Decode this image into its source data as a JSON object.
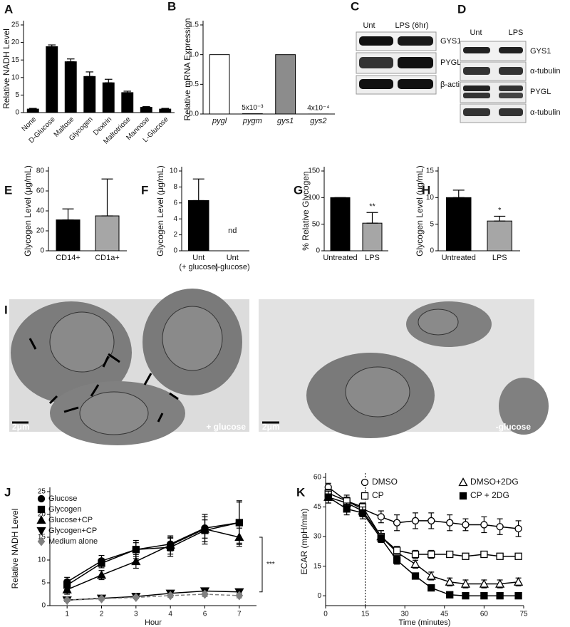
{
  "panel_labels": [
    "A",
    "B",
    "C",
    "D",
    "E",
    "F",
    "G",
    "H",
    "I",
    "J",
    "K"
  ],
  "blots": [
    {
      "header": [
        "Unt",
        "LPS (6hr)"
      ],
      "rows": [
        "GYS1",
        "PYGL",
        "β-actin"
      ]
    },
    {
      "header": [
        "Unt",
        "LPS"
      ],
      "rows": [
        "GYS1",
        "α-tubulin",
        "PYGL",
        "α-tubulin"
      ]
    }
  ],
  "micrographs": [
    {
      "scale": "2μm",
      "label": "+ glucose"
    },
    {
      "scale": "2μm",
      "label": "-glucose"
    }
  ],
  "chart_data": [
    {
      "type": "bar",
      "ylabel": "Relative NADH Level",
      "categories": [
        "None",
        "D-Glucose",
        "Maltose",
        "Glycogen",
        "Dextrin",
        "Maltotriose",
        "Mannose",
        "L-Glucose"
      ],
      "values": [
        1.0,
        18.8,
        14.5,
        10.3,
        8.5,
        5.7,
        1.5,
        1.0
      ],
      "errors": [
        0.2,
        0.5,
        0.8,
        1.3,
        1.0,
        0.4,
        0.2,
        0.2
      ],
      "color": "#000000",
      "ylim": [
        0,
        25
      ],
      "yticks": [
        0,
        5,
        10,
        15,
        20,
        25
      ]
    },
    {
      "type": "bar",
      "ylabel": "Relative mRNA Expression",
      "categories": [
        "pygl",
        "pygm",
        "gys1",
        "gys2"
      ],
      "values": [
        1.0,
        0.005,
        1.0,
        0.0004
      ],
      "value_labels": [
        null,
        "5x10⁻³",
        null,
        "4x10⁻⁴"
      ],
      "colors": [
        "#ffffff",
        "#000000",
        "#8c8c8c",
        "#000000"
      ],
      "ylim": [
        0,
        1.5
      ],
      "yticks": [
        {
          "value": 0,
          "label": "0.0"
        },
        {
          "value": 0.5,
          "label": "0.5"
        },
        {
          "value": 1,
          "label": "1.0"
        },
        {
          "value": 1.5,
          "label": "1.5"
        }
      ]
    },
    {
      "type": "bar",
      "ylabel": "Glycogen Level (μg/mL)",
      "categories": [
        "CD14+",
        "CD1a+"
      ],
      "values": [
        31,
        35
      ],
      "errors": [
        11,
        37
      ],
      "colors": [
        "#000000",
        "#a6a6a6"
      ],
      "ylim": [
        0,
        80
      ],
      "yticks": [
        0,
        20,
        40,
        60,
        80
      ]
    },
    {
      "type": "bar",
      "ylabel": "Glycogen Level (μg/mL)",
      "categories": [
        "Unt\n(+ glucose)",
        "Unt\n(-glucose)"
      ],
      "values": [
        6.3,
        null
      ],
      "errors": [
        2.7,
        null
      ],
      "annotations": [
        {
          "text": "nd",
          "category": 1
        }
      ],
      "color": "#000000",
      "ylim": [
        0,
        10
      ],
      "yticks": [
        0,
        2,
        4,
        6,
        8,
        10
      ]
    },
    {
      "type": "bar",
      "ylabel": "% Relative Glycogen",
      "categories": [
        "Untreated",
        "LPS"
      ],
      "values": [
        100,
        52
      ],
      "errors": [
        0,
        20
      ],
      "annotations": [
        {
          "text": "**",
          "category": 1
        }
      ],
      "colors": [
        "#000000",
        "#a6a6a6"
      ],
      "ylim": [
        0,
        150
      ],
      "yticks": [
        0,
        50,
        100,
        150
      ]
    },
    {
      "type": "bar",
      "ylabel": "Glycogen Level (μg/mL)",
      "categories": [
        "Untreated",
        "LPS"
      ],
      "values": [
        10,
        5.6
      ],
      "errors": [
        1.4,
        0.9
      ],
      "annotations": [
        {
          "text": "*",
          "category": 1
        }
      ],
      "colors": [
        "#000000",
        "#a6a6a6"
      ],
      "ylim": [
        0,
        15
      ],
      "yticks": [
        0,
        5,
        10,
        15
      ]
    },
    {
      "type": "line",
      "xlabel": "Hour",
      "ylabel": "Relative NADH Level",
      "categories": [
        "1",
        "2",
        "3",
        "4",
        "6",
        "7"
      ],
      "ylim": [
        0,
        25
      ],
      "yticks": [
        0,
        5,
        10,
        15,
        20,
        25
      ],
      "annotations": [
        {
          "text": "***"
        }
      ],
      "series": [
        {
          "name": "Glucose",
          "color": "#000000",
          "marker": "circle",
          "filled": true,
          "values": [
            5.2,
            9.8,
            12.3,
            13.5,
            17.0,
            18.2
          ],
          "errors": [
            1.0,
            1.2,
            1.5,
            1.5,
            3.0,
            4.5
          ]
        },
        {
          "name": "Glycogen",
          "color": "#000000",
          "marker": "square",
          "filled": true,
          "values": [
            4.5,
            9.3,
            12.3,
            12.8,
            16.5,
            18.2
          ],
          "errors": [
            1.0,
            1.0,
            2.0,
            2.0,
            3.0,
            4.8
          ]
        },
        {
          "name": "Glucose+CP",
          "color": "#000000",
          "marker": "triangle",
          "filled": true,
          "values": [
            3.5,
            6.7,
            9.7,
            13.3,
            16.8,
            15.0
          ],
          "errors": [
            1.0,
            1.0,
            1.5,
            2.0,
            2.0,
            2.0
          ]
        },
        {
          "name": "Glycogen+CP",
          "color": "#000000",
          "marker": "triangle-down",
          "filled": true,
          "values": [
            1.2,
            1.6,
            2.0,
            2.7,
            3.2,
            3.0
          ],
          "errors": [
            0.3,
            0.3,
            0.3,
            0.4,
            0.5,
            0.5
          ]
        },
        {
          "name": "Medium alone",
          "color": "#808080",
          "marker": "diamond",
          "filled": true,
          "dashed": true,
          "values": [
            1.2,
            1.5,
            1.8,
            2.2,
            2.5,
            2.2
          ],
          "errors": [
            0.3,
            0.3,
            0.3,
            0.4,
            0.5,
            0.5
          ]
        }
      ]
    },
    {
      "type": "line",
      "xlabel": "Time (minutes)",
      "ylabel": "ECAR (mpH/min)",
      "x": [
        1,
        8,
        14,
        21,
        27,
        34,
        40,
        47,
        53,
        60,
        66,
        73
      ],
      "xlim": [
        0,
        75
      ],
      "xticks": [
        0,
        15,
        30,
        45,
        60,
        75
      ],
      "ylim": [
        -5,
        60
      ],
      "yticks": [
        0,
        15,
        30,
        45,
        60
      ],
      "vline": 15,
      "series": [
        {
          "name": "DMSO",
          "color": "#000000",
          "marker": "circle",
          "filled": false,
          "values": [
            55,
            48,
            44,
            40,
            37,
            38,
            38,
            37,
            36,
            36,
            35,
            34
          ],
          "errors": [
            2,
            3,
            3,
            3,
            4,
            4,
            4,
            4,
            3,
            4,
            4,
            4
          ]
        },
        {
          "name": "DMSO+2DG",
          "color": "#000000",
          "marker": "triangle",
          "filled": false,
          "values": [
            50,
            47,
            43,
            30,
            22,
            16,
            10,
            7,
            6,
            6,
            6,
            7
          ],
          "errors": [
            3,
            3,
            3,
            3,
            2,
            2,
            2,
            2,
            2,
            2,
            2,
            2
          ]
        },
        {
          "name": "CP",
          "color": "#000000",
          "marker": "square",
          "filled": false,
          "values": [
            52,
            48,
            45,
            30,
            23,
            21,
            21,
            21,
            20,
            21,
            20,
            20
          ],
          "errors": [
            2,
            2,
            2,
            3,
            2,
            2,
            2,
            1,
            1,
            1,
            1,
            1
          ]
        },
        {
          "name": "CP + 2DG",
          "color": "#000000",
          "marker": "square",
          "filled": true,
          "values": [
            50,
            44,
            42,
            29,
            18,
            10,
            4,
            0.5,
            0,
            0,
            0,
            0
          ],
          "errors": [
            3,
            3,
            3,
            2,
            2,
            1,
            1,
            1,
            0.5,
            0.5,
            0.5,
            0.5
          ]
        }
      ]
    }
  ]
}
